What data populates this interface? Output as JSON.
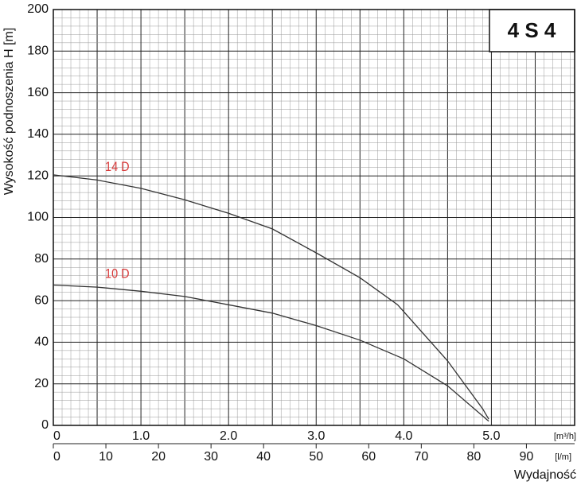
{
  "chart_data": {
    "type": "line",
    "title": "4 S 4",
    "ylabel": "Wysokość podnoszenia H [m]",
    "xlabel": "Wydajność",
    "x_unit": "[m³/h]",
    "x2_unit": "[l/m]",
    "xlim": [
      0,
      5.95
    ],
    "xticks": [
      0,
      {
        "value": 1,
        "label": "1.0"
      },
      {
        "value": 2,
        "label": "2.0"
      },
      {
        "value": 3,
        "label": "3.0"
      },
      {
        "value": 4,
        "label": "4.0"
      },
      {
        "value": 5,
        "label": "5.0"
      }
    ],
    "x2lim": [
      0,
      99.17
    ],
    "x2ticks": [
      0,
      10,
      20,
      30,
      40,
      50,
      60,
      70,
      80,
      90
    ],
    "ylim": [
      0,
      200
    ],
    "yticks": [
      0,
      20,
      40,
      60,
      80,
      100,
      120,
      140,
      160,
      180,
      200
    ],
    "grid": true,
    "series": [
      {
        "name": "14 D",
        "color": "#333333",
        "label_color": "#d83a3a",
        "x": [
          0,
          0.5,
          1.0,
          1.5,
          2.0,
          2.5,
          3.0,
          3.5,
          3.93,
          4.5,
          4.9,
          4.97
        ],
        "values": [
          120.5,
          118,
          114,
          108.5,
          102,
          94.5,
          83,
          71,
          58,
          31,
          8,
          3
        ]
      },
      {
        "name": "10 D",
        "color": "#333333",
        "label_color": "#d83a3a",
        "x": [
          0,
          0.5,
          1.0,
          1.5,
          2.0,
          2.5,
          3.0,
          3.5,
          4.0,
          4.5,
          4.97
        ],
        "values": [
          67.5,
          66.5,
          64.5,
          62,
          58,
          54,
          48,
          41,
          32,
          19,
          2
        ]
      }
    ]
  }
}
